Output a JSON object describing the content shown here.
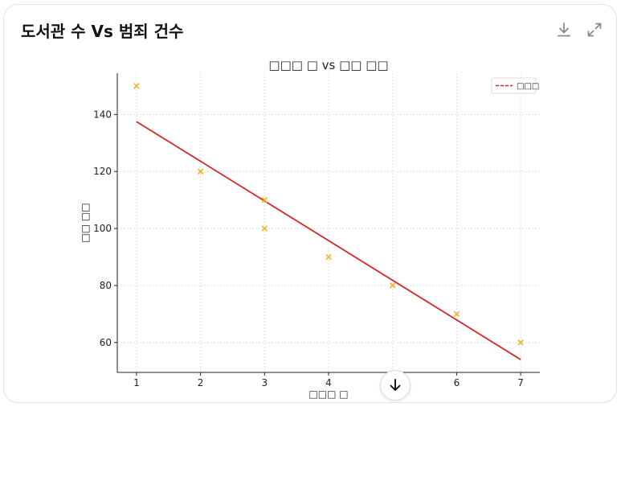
{
  "card": {
    "title": "도서관 수 Vs 범죄 건수",
    "icons": {
      "download": "download-icon",
      "expand": "expand-icon",
      "scroll": "arrow-down-icon"
    }
  },
  "chart_data": {
    "type": "scatter",
    "title": "□□□ □ vs □□ □□",
    "xlabel": "□□□ □",
    "ylabel": "□□ □□",
    "xlim": [
      0.7,
      7.3
    ],
    "ylim": [
      49.5,
      154.5
    ],
    "xticks": [
      1,
      2,
      3,
      4,
      5,
      6,
      7
    ],
    "yticks": [
      60,
      80,
      100,
      120,
      140
    ],
    "grid": true,
    "legend_position": "top-right",
    "points": {
      "x": [
        1,
        2,
        3,
        3,
        4,
        5,
        6,
        7
      ],
      "y": [
        150,
        120,
        110,
        100,
        90,
        80,
        70,
        60
      ],
      "color": "#f0b429",
      "marker": "x"
    },
    "regression": {
      "name": "□□□",
      "x": [
        1,
        7
      ],
      "y": [
        137.5,
        54
      ],
      "color": "#d62728",
      "style": "dashed"
    }
  }
}
